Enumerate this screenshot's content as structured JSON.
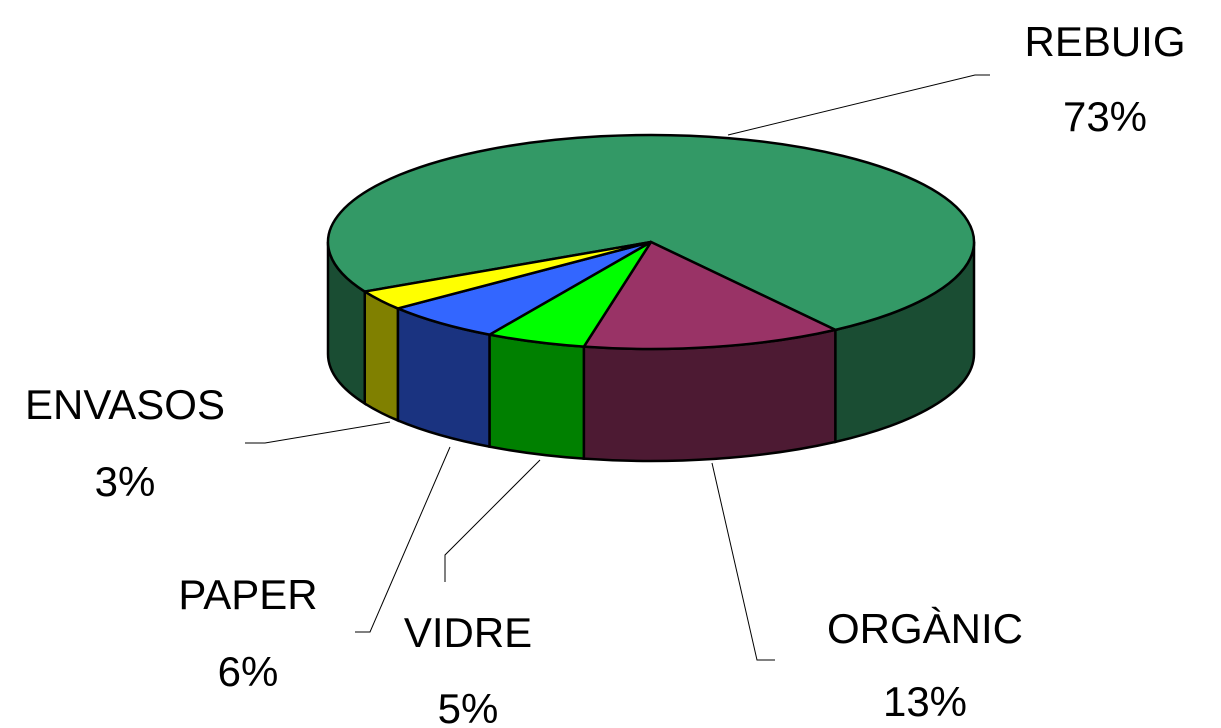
{
  "chart_data": {
    "type": "pie",
    "categories": [
      "REBUIG",
      "ORGÀNIC",
      "VIDRE",
      "PAPER",
      "ENVASOS"
    ],
    "values": [
      73,
      13,
      5,
      6,
      3
    ],
    "value_labels": [
      "73%",
      "13%",
      "5%",
      "6%",
      "3%"
    ],
    "colors": [
      "#339966",
      "#993366",
      "#00ff00",
      "#3366ff",
      "#ffff00"
    ]
  }
}
